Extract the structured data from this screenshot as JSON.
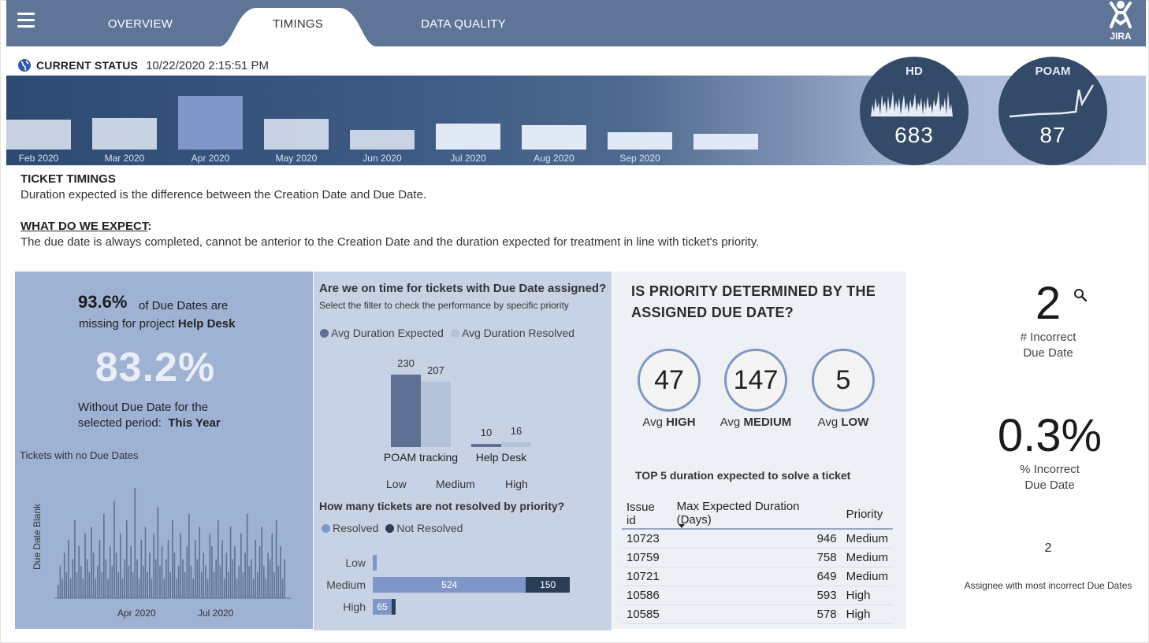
{
  "header": {
    "tabs": [
      {
        "label": "OVERVIEW"
      },
      {
        "label": "TIMINGS"
      },
      {
        "label": "DATA QUALITY"
      }
    ],
    "active_tab": "TIMINGS",
    "logo_text": "JIRA",
    "menu_icon": "hamburger-menu-icon"
  },
  "status": {
    "title": "CURRENT STATUS",
    "timestamp": "10/22/2020 2:15:51 PM",
    "icon": "globe-icon"
  },
  "monthly": {
    "labels": [
      "Feb 2020",
      "Mar 2020",
      "Apr 2020",
      "May 2020",
      "Jun 2020",
      "Jul 2020",
      "Aug 2020",
      "Sep 2020",
      ""
    ],
    "relative_values": [
      0.56,
      0.59,
      1.0,
      0.58,
      0.37,
      0.48,
      0.45,
      0.32,
      0.3
    ],
    "selected_index": 2
  },
  "kpi_circles": [
    {
      "name": "HD",
      "value": "683"
    },
    {
      "name": "POAM",
      "value": "87"
    }
  ],
  "intro": {
    "title": "TICKET TIMINGS",
    "description": "Duration expected is the difference between the Creation Date and Due Date.",
    "expect_title": "WHAT DO WE EXPECT",
    "expect_colon": ":",
    "expect_description": "The due date is always completed, cannot be anterior to the Creation Date and the duration expected for treatment in line with ticket's priority."
  },
  "panel_missing": {
    "pct_missing": "93.6%",
    "pct_text1": "of Due Dates are",
    "pct_text2_prefix": "missing for project",
    "project": "Help Desk",
    "big_value": "83.2%",
    "without_text": "Without Due Date for the",
    "period_prefix": "selected period:",
    "period": "This Year",
    "chart_title": "Tickets with no Due Dates",
    "y_axis_label": "Due Date Blank",
    "x_ticks": [
      "Apr 2020",
      "Jul 2020"
    ]
  },
  "panel_ontime": {
    "question": "Are we on time for tickets with Due Date assigned?",
    "subtitle": "Select the filter to check the performance by specific priority",
    "legend": [
      "Avg Duration Expected",
      "Avg Duration Resolved"
    ],
    "filter_options": [
      "Low",
      "Medium",
      "High"
    ],
    "question2": "How many tickets are not resolved by priority?",
    "legend2": [
      "Resolved",
      "Not Resolved"
    ]
  },
  "panel_priority": {
    "question": "IS PRIORITY DETERMINED BY THE ASSIGNED DUE DATE?",
    "rings": [
      {
        "value": "47",
        "prefix": "Avg",
        "level": "HIGH"
      },
      {
        "value": "147",
        "prefix": "Avg",
        "level": "MEDIUM"
      },
      {
        "value": "5",
        "prefix": "Avg",
        "level": "LOW"
      }
    ],
    "top5_title": "TOP 5 duration expected to solve a ticket",
    "columns": [
      "Issue id",
      "Max Expected Duration (Days)",
      "Priority"
    ],
    "rows": [
      [
        "10723",
        "946",
        "Medium"
      ],
      [
        "10759",
        "758",
        "Medium"
      ],
      [
        "10721",
        "649",
        "Medium"
      ],
      [
        "10586",
        "593",
        "High"
      ],
      [
        "10585",
        "578",
        "High"
      ]
    ]
  },
  "right_kpis": {
    "incorrect_count": "2",
    "incorrect_count_label1": "# Incorrect",
    "incorrect_count_label2": "Due Date",
    "incorrect_pct": "0.3%",
    "incorrect_pct_label1": "% Incorrect",
    "incorrect_pct_label2": "Due Date",
    "assignee_value": "2",
    "assignee_label": "Assignee with most incorrect Due Dates"
  },
  "chart_data": [
    {
      "type": "bar",
      "title": "",
      "categories": [
        "POAM tracking",
        "Help Desk"
      ],
      "series": [
        {
          "name": "Avg Duration Expected",
          "values": [
            230,
            10
          ]
        },
        {
          "name": "Avg Duration Resolved",
          "values": [
            207,
            16
          ]
        }
      ],
      "colors": [
        "#5e7093",
        "#b3c2d8"
      ]
    },
    {
      "type": "bar",
      "orientation": "horizontal",
      "stacked": true,
      "title": "How many tickets are not resolved by priority?",
      "categories": [
        "Low",
        "Medium",
        "High"
      ],
      "series": [
        {
          "name": "Resolved",
          "values": [
            3,
            524,
            65
          ]
        },
        {
          "name": "Not Resolved",
          "values": [
            0,
            150,
            8
          ]
        }
      ],
      "colors": [
        "#7e97c8",
        "#2b3e58"
      ]
    },
    {
      "type": "bar",
      "title": "Tickets with no Due Dates",
      "ylabel": "Due Date Blank",
      "x_ticks": [
        "Apr 2020",
        "Jul 2020"
      ],
      "values": [
        2,
        5,
        3,
        7,
        4,
        9,
        3,
        6,
        12,
        4,
        8,
        5,
        3,
        10,
        6,
        4,
        11,
        7,
        3,
        5,
        9,
        4,
        13,
        6,
        3,
        8,
        5,
        15,
        7,
        4,
        10,
        3,
        6,
        12,
        5,
        8,
        4,
        17,
        6,
        3,
        9,
        5,
        11,
        4,
        7,
        3,
        10,
        6,
        14,
        5,
        8,
        3,
        6,
        9,
        4,
        12,
        7,
        3,
        5,
        10,
        6,
        4,
        8,
        13,
        5,
        3,
        9,
        6,
        11,
        4,
        7,
        5,
        3,
        10,
        8,
        4,
        6,
        12,
        5,
        9,
        3,
        7,
        4,
        11,
        6,
        8,
        3,
        5,
        10,
        4,
        7,
        13,
        5,
        6,
        3,
        9,
        4,
        8,
        11,
        5,
        3,
        7,
        6,
        10,
        4,
        12,
        5,
        8,
        3,
        6
      ]
    }
  ]
}
